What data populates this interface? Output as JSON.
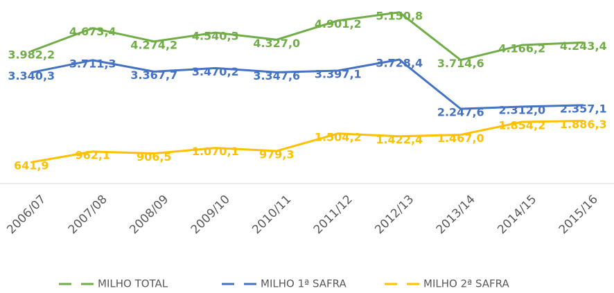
{
  "chart_data": {
    "type": "line",
    "categories": [
      "2006/07",
      "2007/08",
      "2008/09",
      "2009/10",
      "2010/11",
      "2011/12",
      "2012/13",
      "2013/14",
      "2014/15",
      "2015/16"
    ],
    "ylim": [
      0,
      5500
    ],
    "series": [
      {
        "name": "MILHO TOTAL",
        "color": "#70ad47",
        "values": [
          3982.2,
          4673.4,
          4274.2,
          4540.3,
          4327.0,
          4901.2,
          5150.8,
          3714.6,
          4166.2,
          4243.4
        ],
        "value_labels": [
          "3.982,2",
          "4.673,4",
          "4.274,2",
          "4.540,3",
          "4.327,0",
          "4.901,2",
          "5.150,8",
          "3.714,6",
          "4.166,2",
          "4.243,4"
        ]
      },
      {
        "name": "MILHO 1ª SAFRA",
        "color": "#4472c4",
        "values": [
          3340.3,
          3711.3,
          3367.7,
          3470.2,
          3347.6,
          3397.1,
          3728.4,
          2247.6,
          2312.0,
          2357.1
        ],
        "value_labels": [
          "3.340,3",
          "3.711,3",
          "3.367,7",
          "3.470,2",
          "3.347,6",
          "3.397,1",
          "3.728,4",
          "2.247,6",
          "2.312,0",
          "2.357,1"
        ]
      },
      {
        "name": "MILHO 2ª SAFRA",
        "color": "#ffc000",
        "values": [
          641.9,
          962.1,
          906.5,
          1070.1,
          979.3,
          1504.2,
          1422.4,
          1467.0,
          1854.2,
          1886.3
        ],
        "value_labels": [
          "641,9",
          "962,1",
          "906,5",
          "1.070,1",
          "979,3",
          "1.504,2",
          "1.422,4",
          "1.467,0",
          "1.854,2",
          "1.886,3"
        ]
      }
    ]
  }
}
